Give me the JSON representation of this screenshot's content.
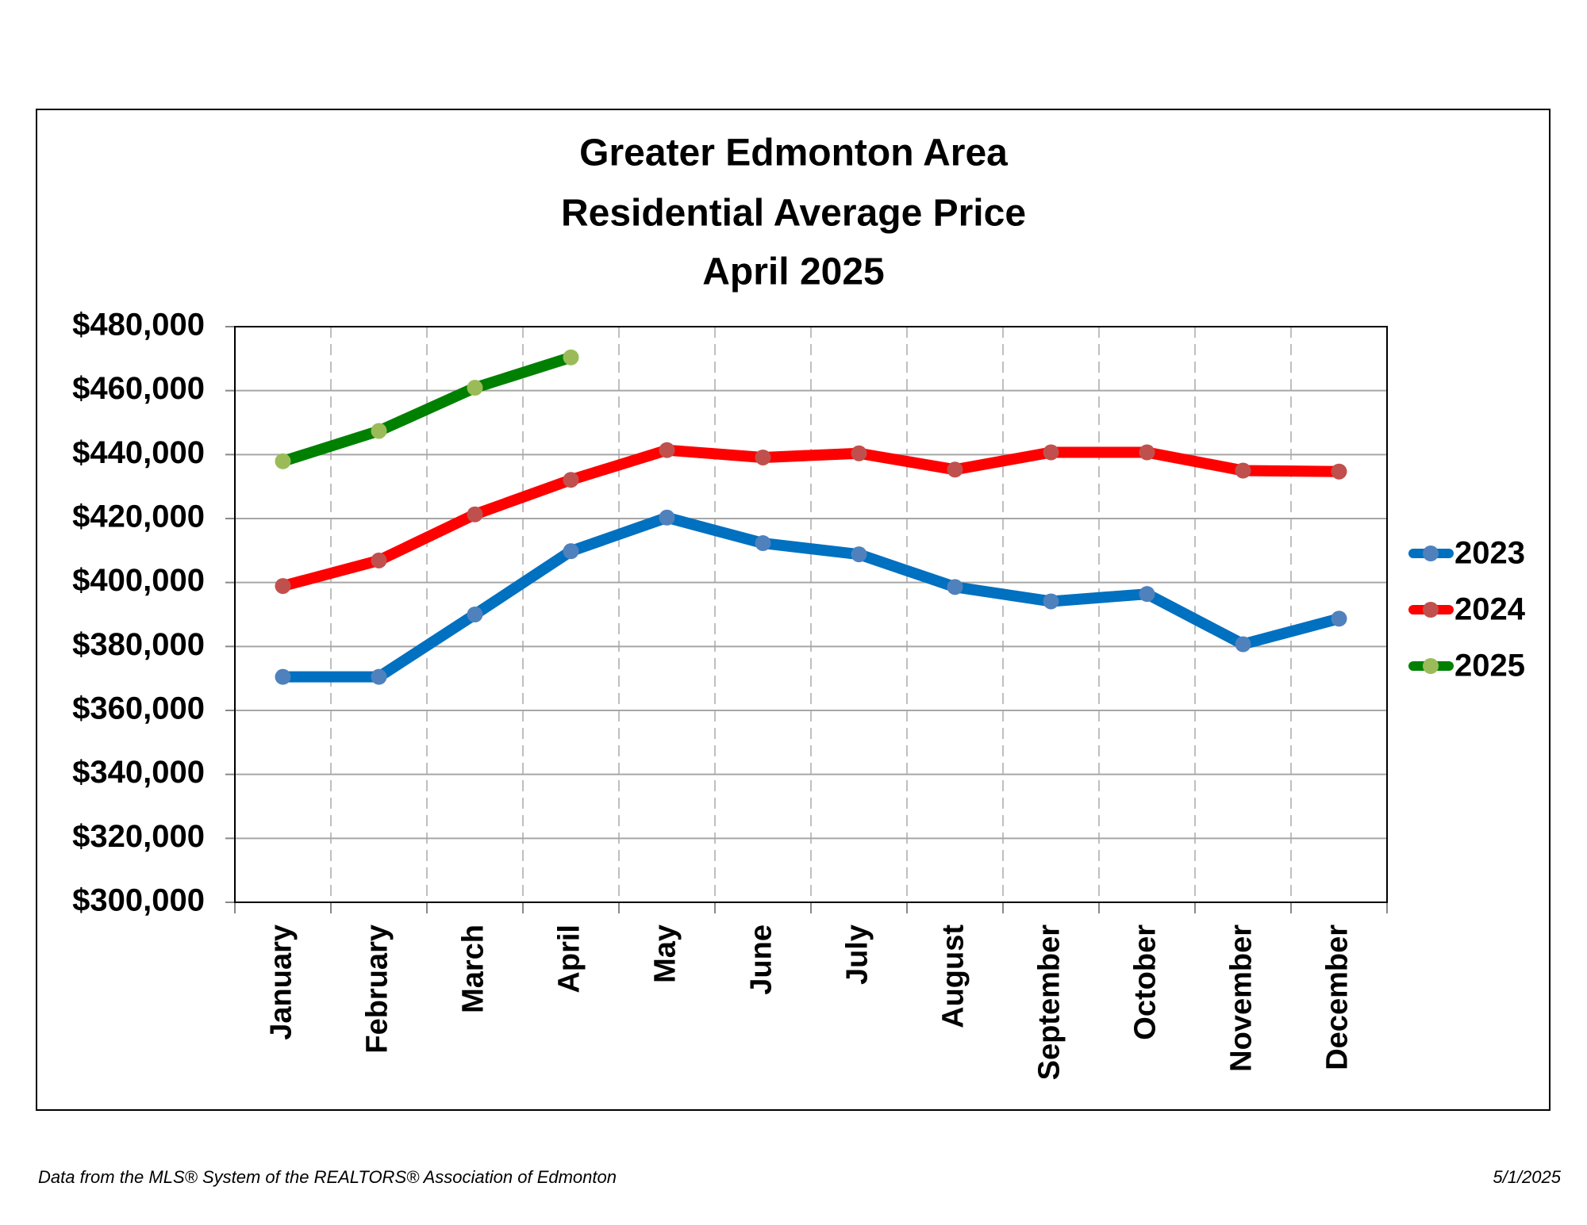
{
  "chart_data": {
    "type": "line",
    "title": [
      "Greater Edmonton Area",
      "Residential Average Price",
      "April 2025"
    ],
    "categories": [
      "January",
      "February",
      "March",
      "April",
      "May",
      "June",
      "July",
      "August",
      "September",
      "October",
      "November",
      "December"
    ],
    "series": [
      {
        "name": "2023",
        "color": "#0070c0",
        "marker_color": "#4f81bd",
        "values": [
          370500,
          370500,
          390000,
          409800,
          420300,
          412300,
          408800,
          398600,
          394100,
          396400,
          380700,
          388700
        ]
      },
      {
        "name": "2024",
        "color": "#ff0000",
        "marker_color": "#c0504d",
        "values": [
          398900,
          406900,
          421300,
          432100,
          441400,
          439100,
          440400,
          435300,
          440700,
          440700,
          435000,
          434700
        ]
      },
      {
        "name": "2025",
        "color": "#008000",
        "marker_color": "#9bbb59",
        "values": [
          437900,
          447400,
          460900,
          470400,
          null,
          null,
          null,
          null,
          null,
          null,
          null,
          null
        ]
      }
    ],
    "ylim": [
      300000,
      480000
    ],
    "yticks": [
      {
        "value": 300000,
        "label": "$300,000"
      },
      {
        "value": 320000,
        "label": "$320,000"
      },
      {
        "value": 340000,
        "label": "$340,000"
      },
      {
        "value": 360000,
        "label": "$360,000"
      },
      {
        "value": 380000,
        "label": "$380,000"
      },
      {
        "value": 400000,
        "label": "$400,000"
      },
      {
        "value": 420000,
        "label": "$420,000"
      },
      {
        "value": 440000,
        "label": "$440,000"
      },
      {
        "value": 460000,
        "label": "$460,000"
      },
      {
        "value": 480000,
        "label": "$480,000"
      }
    ],
    "grid": true,
    "legend": "right",
    "footer": "Data from the MLS® System of the REALTORS® Association of Edmonton",
    "date": "5/1/2025"
  }
}
